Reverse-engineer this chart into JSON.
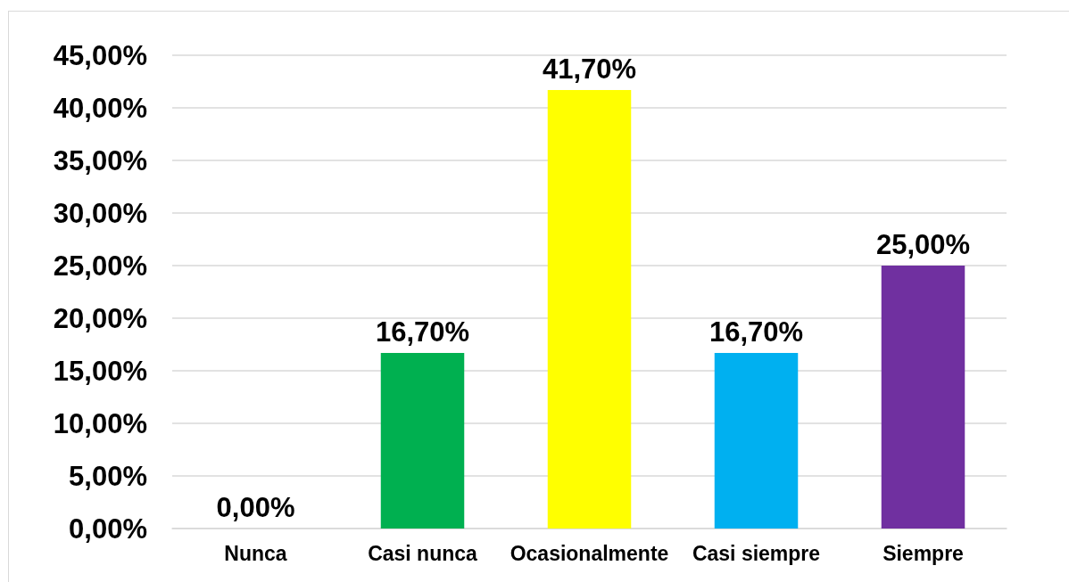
{
  "chart_data": {
    "type": "bar",
    "categories": [
      "Nunca",
      "Casi nunca",
      "Ocasionalmente",
      "Casi siempre",
      "Siempre"
    ],
    "values": [
      0,
      16.7,
      41.7,
      16.7,
      25
    ],
    "colors": [
      "#c00000",
      "#00b050",
      "#ffff00",
      "#00b0f0",
      "#7030a0"
    ],
    "value_labels": [
      "0,00%",
      "16,70%",
      "41,70%",
      "16,70%",
      "25,00%"
    ],
    "ylim": [
      0,
      45
    ],
    "yticks": [
      {
        "value": 0,
        "label": "0,00%"
      },
      {
        "value": 5,
        "label": "5,00%"
      },
      {
        "value": 10,
        "label": "10,00%"
      },
      {
        "value": 15,
        "label": "15,00%"
      },
      {
        "value": 20,
        "label": "20,00%"
      },
      {
        "value": 25,
        "label": "25,00%"
      },
      {
        "value": 30,
        "label": "30,00%"
      },
      {
        "value": 35,
        "label": "35,00%"
      },
      {
        "value": 40,
        "label": "40,00%"
      },
      {
        "value": 45,
        "label": "45,00%"
      }
    ],
    "grid": "y"
  }
}
